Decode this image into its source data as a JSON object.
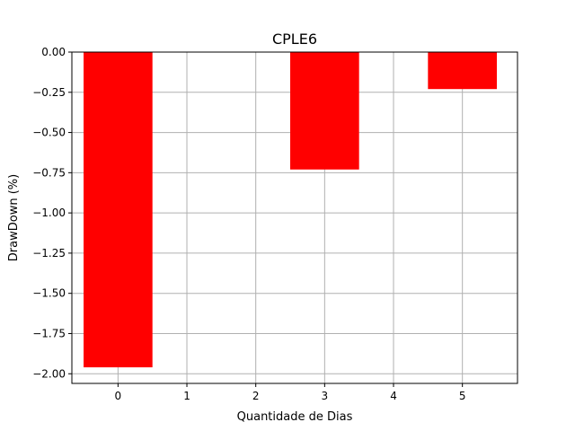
{
  "chart_data": {
    "type": "bar",
    "title": "CPLE6",
    "xlabel": "Quantidade de Dias",
    "ylabel": "DrawDown (%)",
    "x": [
      0,
      1,
      2,
      3,
      4,
      5
    ],
    "x_tick_labels": [
      "0",
      "1",
      "2",
      "3",
      "4",
      "5"
    ],
    "xlim": [
      -0.67,
      5.8
    ],
    "ylim": [
      -2.06,
      0.0
    ],
    "y_ticks": [
      0.0,
      -0.25,
      -0.5,
      -0.75,
      -1.0,
      -1.25,
      -1.5,
      -1.75,
      -2.0
    ],
    "y_tick_labels": [
      "0.00",
      "−0.25",
      "−0.50",
      "−0.75",
      "−1.00",
      "−1.25",
      "−1.50",
      "−1.75",
      "−2.00"
    ],
    "bar_width": 1.0,
    "series": [
      {
        "x": [
          0,
          3,
          5
        ],
        "values": [
          -1.96,
          -0.73,
          -0.23
        ],
        "color": "#ff0000"
      }
    ],
    "grid": true,
    "colors": {
      "bar": "#ff0000",
      "grid": "#b0b0b0",
      "axis": "#000000"
    }
  }
}
